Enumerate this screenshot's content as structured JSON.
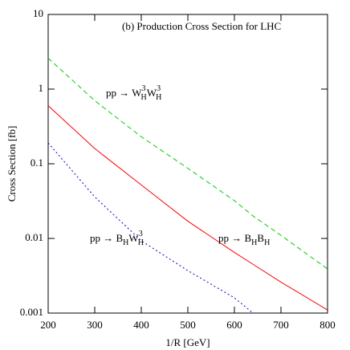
{
  "chart_data": {
    "type": "line",
    "title": "(b) Production Cross Section for LHC",
    "xlabel": "1/R [GeV]",
    "ylabel": "Cross Section [fb]",
    "x": [
      200,
      300,
      400,
      500,
      600,
      640,
      700,
      800
    ],
    "xlim": [
      200,
      800
    ],
    "xticks": [
      200,
      300,
      400,
      500,
      600,
      700,
      800
    ],
    "ylim": [
      0.001,
      10
    ],
    "yticks": [
      0.001,
      0.01,
      0.1,
      1,
      10
    ],
    "yscale": "log",
    "series": [
      {
        "name": "pp → W3HW3H",
        "color": "#00cc00",
        "dash": "6,4",
        "values": [
          2.6,
          0.7,
          0.23,
          0.087,
          0.032,
          0.02,
          0.011,
          0.0039
        ]
      },
      {
        "name": "pp → BHBH",
        "color": "#ff0000",
        "dash": "none",
        "values": [
          0.6,
          0.16,
          0.052,
          0.017,
          0.0065,
          0.0045,
          0.0026,
          0.0011
        ]
      },
      {
        "name": "pp → BHW3H",
        "color": "#0000cc",
        "dash": "2,3",
        "values": [
          0.19,
          0.036,
          0.0093,
          0.0037,
          0.0016,
          0.001,
          null,
          null
        ]
      }
    ],
    "annotations": [
      {
        "parts": [
          "pp → W",
          "3",
          "H",
          "W",
          "3",
          "H"
        ]
      },
      {
        "parts": [
          "pp → B",
          "H",
          "W",
          "3",
          "H"
        ]
      },
      {
        "parts": [
          "pp → B",
          "H",
          "B",
          "H"
        ]
      }
    ]
  }
}
